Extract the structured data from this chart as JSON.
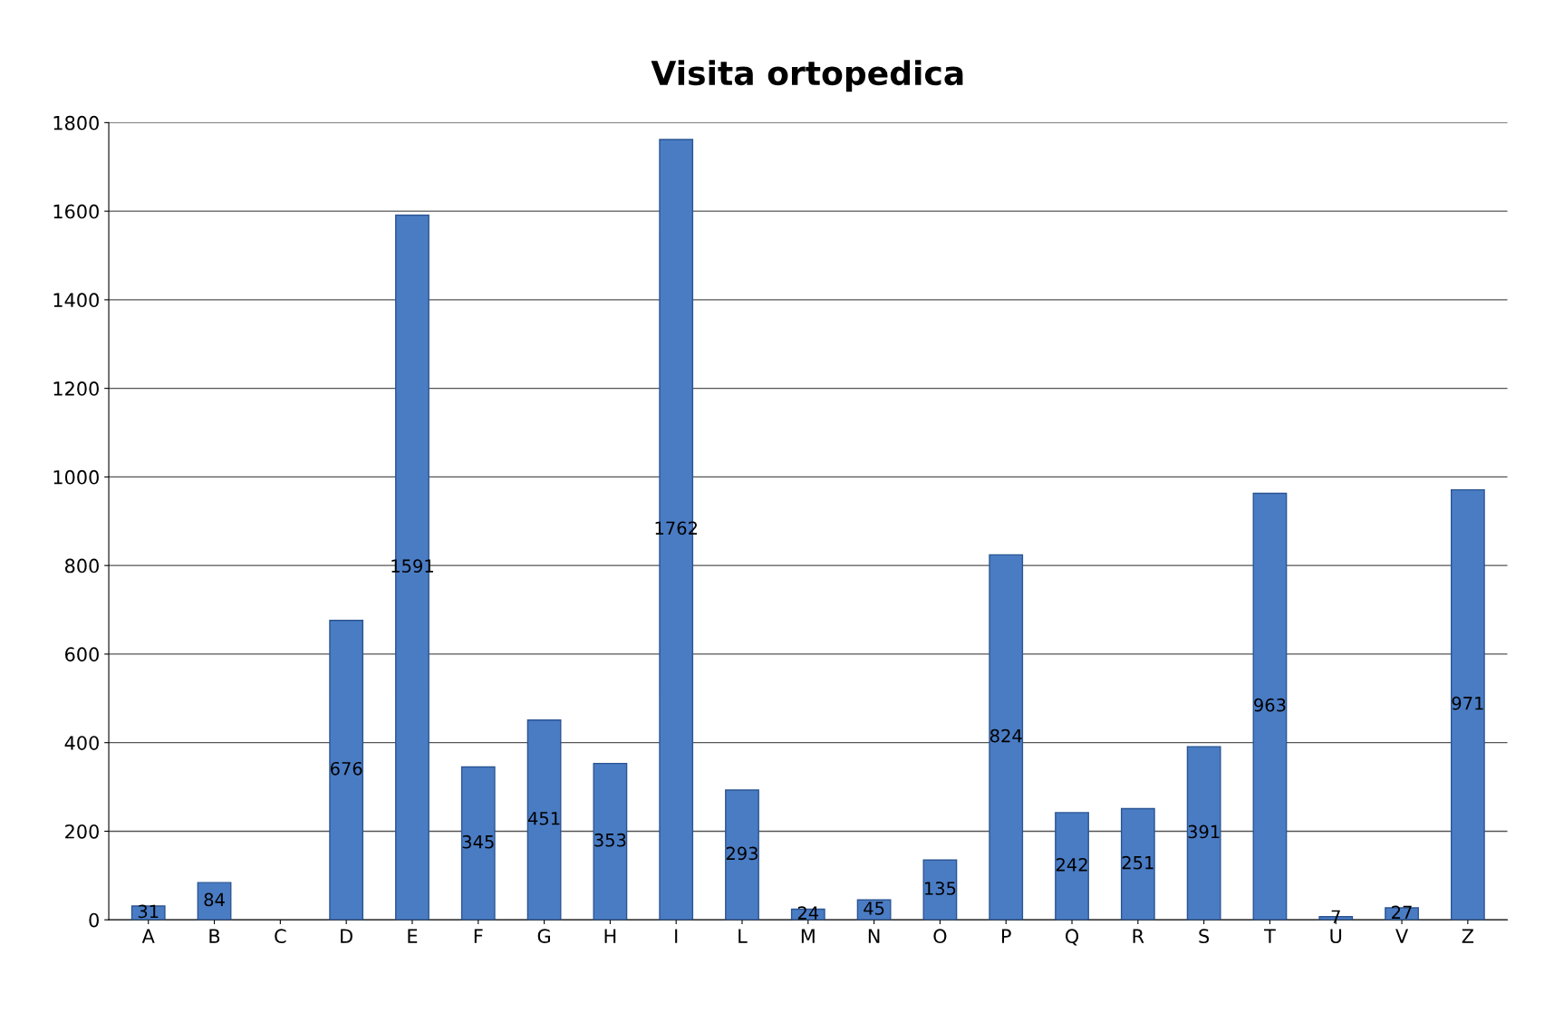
{
  "chart_data": {
    "type": "bar",
    "title": "Visita ortopedica",
    "categories": [
      "A",
      "B",
      "C",
      "D",
      "E",
      "F",
      "G",
      "H",
      "I",
      "L",
      "M",
      "N",
      "O",
      "P",
      "Q",
      "R",
      "S",
      "T",
      "U",
      "V",
      "Z"
    ],
    "values": [
      31,
      84,
      null,
      676,
      1591,
      345,
      451,
      353,
      1762,
      293,
      24,
      45,
      135,
      824,
      242,
      251,
      391,
      963,
      7,
      27,
      971
    ],
    "color": "#4a7cc4",
    "ylim": [
      0,
      1800
    ],
    "yticks": [
      0,
      200,
      400,
      600,
      800,
      1000,
      1200,
      1400,
      1600,
      1800
    ],
    "grid": "y",
    "data_labels": true
  }
}
